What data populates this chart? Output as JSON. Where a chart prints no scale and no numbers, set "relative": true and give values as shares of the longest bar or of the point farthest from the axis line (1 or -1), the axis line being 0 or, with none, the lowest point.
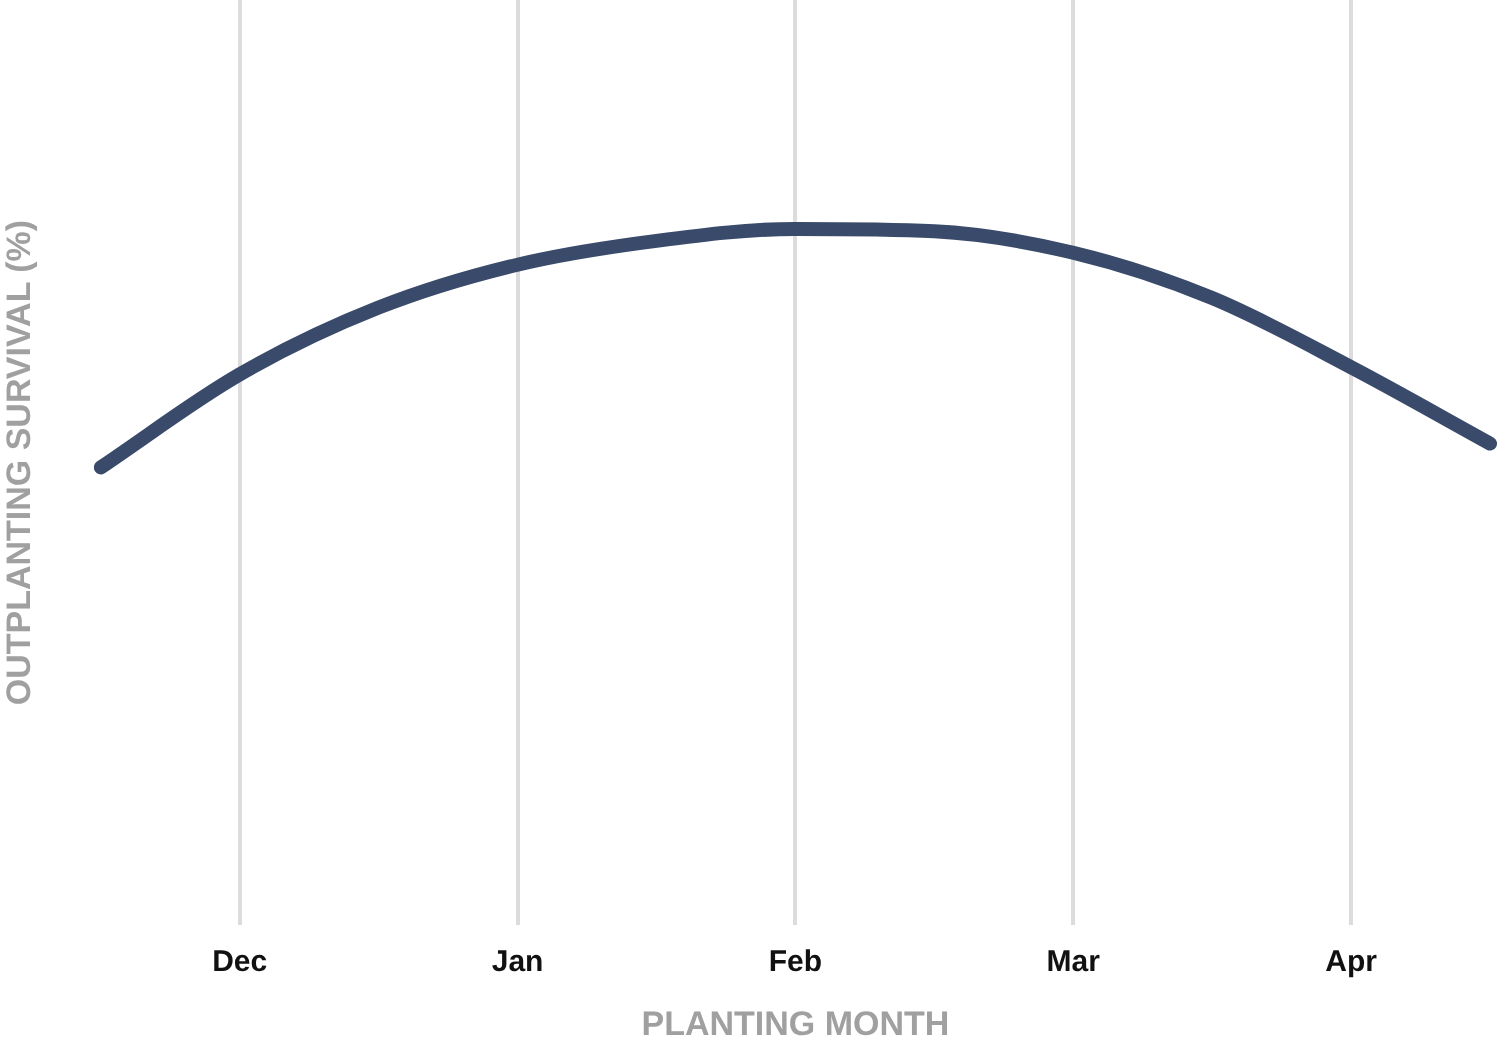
{
  "chart_data": {
    "type": "line",
    "xlabel": "PLANTING MONTH",
    "ylabel": "OUTPLANTING SURVIVAL (%)",
    "relative": true,
    "categories": [
      null,
      "Dec",
      null,
      "Jan",
      null,
      "Feb",
      null,
      "Mar",
      null,
      "Apr",
      null
    ],
    "series": [
      {
        "color": "#3a4a6b",
        "values": [
          0,
          0.39,
          0.67,
          0.85,
          0.95,
          1,
          0.99,
          0.9,
          0.71,
          0.42,
          0.1
        ]
      }
    ],
    "grid": "x",
    "legend": false,
    "marker": "none",
    "line_style": "solid"
  }
}
